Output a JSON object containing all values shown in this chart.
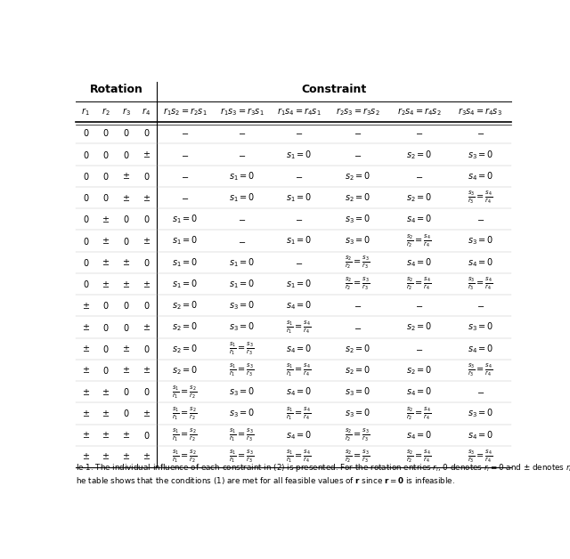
{
  "rotation_header": "Rotation",
  "constraint_header": "Constraint",
  "rows": [
    [
      "$0$",
      "$0$",
      "$0$",
      "$0$",
      "$-$",
      "$-$",
      "$-$",
      "$-$",
      "$-$",
      "$-$"
    ],
    [
      "$0$",
      "$0$",
      "$0$",
      "$\\pm$",
      "$-$",
      "$-$",
      "$s_1=0$",
      "$-$",
      "$s_2=0$",
      "$s_3=0$"
    ],
    [
      "$0$",
      "$0$",
      "$\\pm$",
      "$0$",
      "$-$",
      "$s_1=0$",
      "$-$",
      "$s_2=0$",
      "$-$",
      "$s_4=0$"
    ],
    [
      "$0$",
      "$0$",
      "$\\pm$",
      "$\\pm$",
      "$-$",
      "$s_1=0$",
      "$s_1=0$",
      "$s_2=0$",
      "$s_2=0$",
      "$\\frac{s_3}{r_3}=\\frac{s_4}{r_4}$"
    ],
    [
      "$0$",
      "$\\pm$",
      "$0$",
      "$0$",
      "$s_1=0$",
      "$-$",
      "$-$",
      "$s_3=0$",
      "$s_4=0$",
      "$-$"
    ],
    [
      "$0$",
      "$\\pm$",
      "$0$",
      "$\\pm$",
      "$s_1=0$",
      "$-$",
      "$s_1=0$",
      "$s_3=0$",
      "$\\frac{s_2}{r_2}=\\frac{s_4}{r_4}$",
      "$s_3=0$"
    ],
    [
      "$0$",
      "$\\pm$",
      "$\\pm$",
      "$0$",
      "$s_1=0$",
      "$s_1=0$",
      "$-$",
      "$\\frac{s_2}{r_2}=\\frac{s_3}{r_3}$",
      "$s_4=0$",
      "$s_4=0$"
    ],
    [
      "$0$",
      "$\\pm$",
      "$\\pm$",
      "$\\pm$",
      "$s_1=0$",
      "$s_1=0$",
      "$s_1=0$",
      "$\\frac{s_2}{r_2}=\\frac{s_3}{r_3}$",
      "$\\frac{s_2}{r_2}=\\frac{s_4}{r_4}$",
      "$\\frac{s_3}{r_3}=\\frac{s_4}{r_4}$"
    ],
    [
      "$\\pm$",
      "$0$",
      "$0$",
      "$0$",
      "$s_2=0$",
      "$s_3=0$",
      "$s_4=0$",
      "$-$",
      "$-$",
      "$-$"
    ],
    [
      "$\\pm$",
      "$0$",
      "$0$",
      "$\\pm$",
      "$s_2=0$",
      "$s_3=0$",
      "$\\frac{s_1}{r_1}=\\frac{s_4}{r_4}$",
      "$-$",
      "$s_2=0$",
      "$s_3=0$"
    ],
    [
      "$\\pm$",
      "$0$",
      "$\\pm$",
      "$0$",
      "$s_2=0$",
      "$\\frac{s_1}{r_1}=\\frac{s_3}{r_3}$",
      "$s_4=0$",
      "$s_2=0$",
      "$-$",
      "$s_4=0$"
    ],
    [
      "$\\pm$",
      "$0$",
      "$\\pm$",
      "$\\pm$",
      "$s_2=0$",
      "$\\frac{s_1}{r_1}=\\frac{s_3}{r_3}$",
      "$\\frac{s_1}{r_1}=\\frac{s_4}{r_4}$",
      "$s_2=0$",
      "$s_2=0$",
      "$\\frac{s_3}{r_3}=\\frac{s_4}{r_4}$"
    ],
    [
      "$\\pm$",
      "$\\pm$",
      "$0$",
      "$0$",
      "$\\frac{s_1}{r_1}=\\frac{s_2}{r_2}$",
      "$s_3=0$",
      "$s_4=0$",
      "$s_3=0$",
      "$s_4=0$",
      "$-$"
    ],
    [
      "$\\pm$",
      "$\\pm$",
      "$0$",
      "$\\pm$",
      "$\\frac{s_1}{r_1}=\\frac{s_2}{r_2}$",
      "$s_3=0$",
      "$\\frac{s_1}{r_1}=\\frac{s_4}{r_4}$",
      "$s_3=0$",
      "$\\frac{s_2}{r_2}=\\frac{s_4}{r_4}$",
      "$s_3=0$"
    ],
    [
      "$\\pm$",
      "$\\pm$",
      "$\\pm$",
      "$0$",
      "$\\frac{s_1}{r_1}=\\frac{s_2}{r_2}$",
      "$\\frac{s_1}{r_1}=\\frac{s_3}{r_3}$",
      "$s_4=0$",
      "$\\frac{s_2}{r_2}=\\frac{s_3}{r_3}$",
      "$s_4=0$",
      "$s_4=0$"
    ],
    [
      "$\\pm$",
      "$\\pm$",
      "$\\pm$",
      "$\\pm$",
      "$\\frac{s_1}{r_1}=\\frac{s_2}{r_2}$",
      "$\\frac{s_1}{r_1}=\\frac{s_3}{r_3}$",
      "$\\frac{s_1}{r_1}=\\frac{s_4}{r_4}$",
      "$\\frac{s_2}{r_2}=\\frac{s_3}{r_3}$",
      "$\\frac{s_2}{r_2}=\\frac{s_4}{r_4}$",
      "$\\frac{s_3}{r_3}=\\frac{s_4}{r_4}$"
    ]
  ],
  "col_headers": [
    "$r_1$",
    "$r_2$",
    "$r_3$",
    "$r_4$",
    "$r_1s_2=r_2s_1$",
    "$r_1s_3=r_3s_1$",
    "$r_1s_4=r_4s_1$",
    "$r_2s_3=r_3s_2$",
    "$r_2s_4=r_4s_2$",
    "$r_3s_4=r_4s_3$"
  ],
  "caption_line1": "le 1. The individual influence of each constraint in (2) is presented. For the rotation entries $r_i$, 0 denotes $r_i = 0$ and $\\pm$ denotes $r_i \\neq$",
  "caption_line2": "he table shows that the conditions (1) are met for all feasible values of $\\mathbf{r}$ since $\\mathbf{r} = \\mathbf{0}$ is infeasible."
}
